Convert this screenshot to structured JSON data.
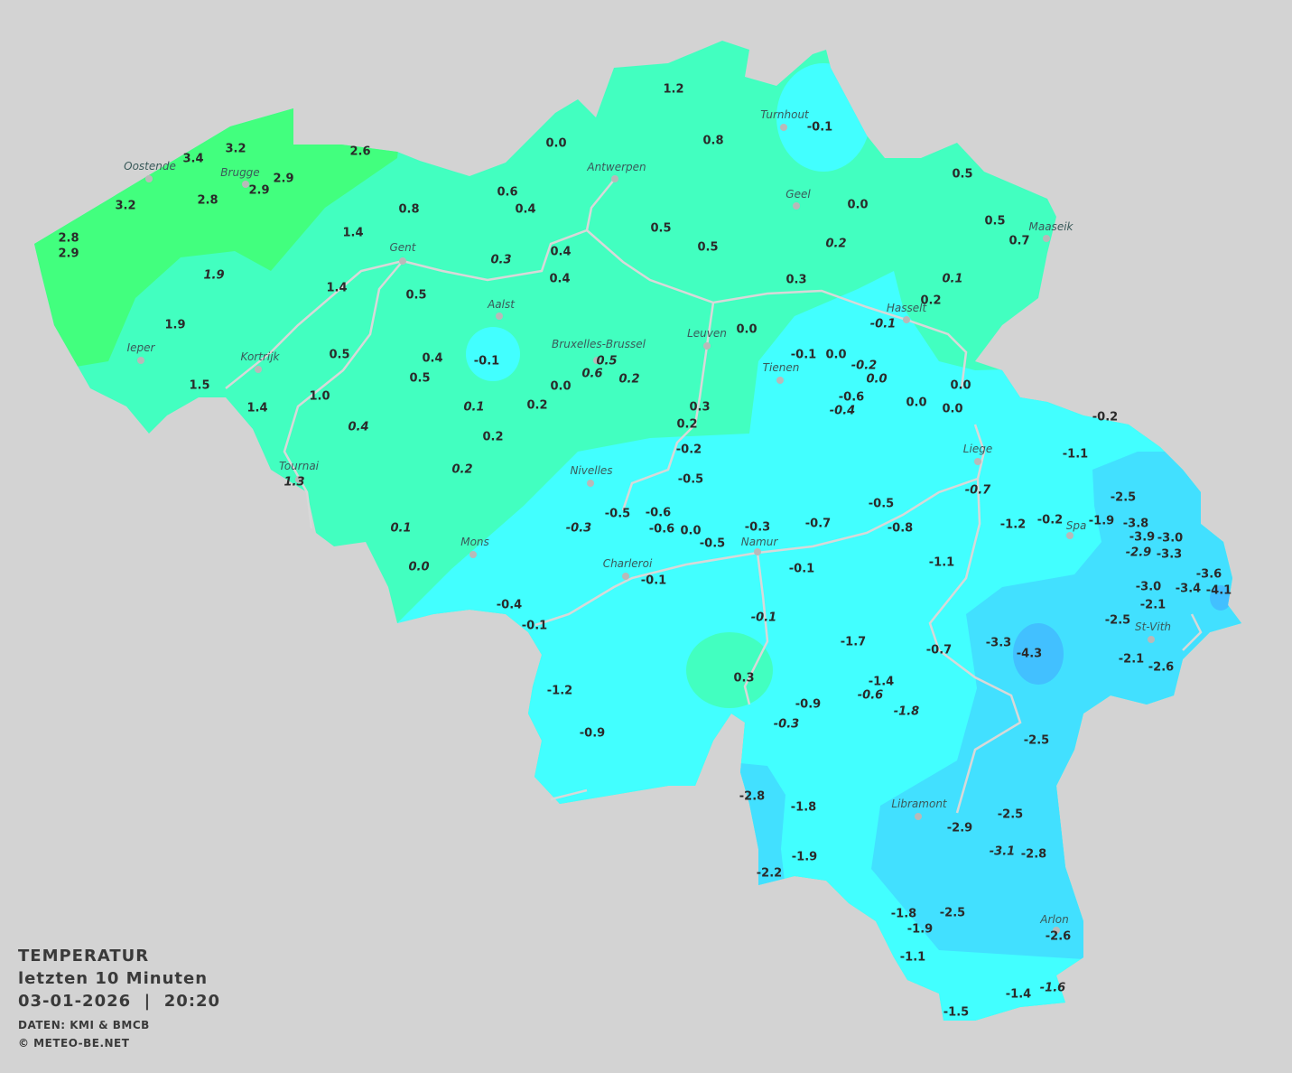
{
  "legend": {
    "title": "TEMPERATUR",
    "subtitle": "letzten 10 Minuten",
    "datetime": "03-01-2026  |  20:20",
    "source": "DATEN: KMI & BMCB",
    "copyright": "© METEO-BE.NET"
  },
  "colors": {
    "background": "#d3d3d3",
    "band_2_to_4": "#42ff7e",
    "band_0_to_2": "#42ffc0",
    "band_m2_to_0": "#42ffff",
    "band_m4_to_m2": "#42e0ff",
    "band_below_m4": "#42c0ff",
    "river": "#d8d8d8"
  },
  "cities": [
    "Turnhout",
    "Oostende",
    "Brugge",
    "Antwerpen",
    "Geel",
    "Maaseik",
    "Gent",
    "Aalst",
    "Hasselt",
    "Leuven",
    "Ieper",
    "Kortrijk",
    "Bruxelles-Brussel",
    "Tienen",
    "Liege",
    "Nivelles",
    "Tournai",
    "Spa",
    "Mons",
    "Namur",
    "Charleroi",
    "St-Vith",
    "Libramont",
    "Arlon"
  ],
  "stations": [
    {
      "v": "1.2"
    },
    {
      "v": "0.0"
    },
    {
      "v": "0.8"
    },
    {
      "v": "-0.1"
    },
    {
      "v": "3.2"
    },
    {
      "v": "3.4"
    },
    {
      "v": "2.6"
    },
    {
      "v": "2.9"
    },
    {
      "v": "2.9"
    },
    {
      "v": "3.2"
    },
    {
      "v": "2.8"
    },
    {
      "v": "0.6"
    },
    {
      "v": "0.4"
    },
    {
      "v": "0.8"
    },
    {
      "v": "0.5"
    },
    {
      "v": "0.0"
    },
    {
      "v": "0.5"
    },
    {
      "v": "0.7"
    },
    {
      "v": "0.5"
    },
    {
      "v": "0.5"
    },
    {
      "v": "0.2",
      "italic": true
    },
    {
      "v": "2.8"
    },
    {
      "v": "2.9"
    },
    {
      "v": "1.4"
    },
    {
      "v": "0.4"
    },
    {
      "v": "0.3",
      "italic": true
    },
    {
      "v": "0.4"
    },
    {
      "v": "1.9",
      "italic": true
    },
    {
      "v": "1.4"
    },
    {
      "v": "0.5"
    },
    {
      "v": "0.3"
    },
    {
      "v": "0.1",
      "italic": true
    },
    {
      "v": "0.2"
    },
    {
      "v": "-0.1",
      "italic": true
    },
    {
      "v": "1.9"
    },
    {
      "v": "0.0"
    },
    {
      "v": "-0.1"
    },
    {
      "v": "0.5"
    },
    {
      "v": "0.4"
    },
    {
      "v": "0.5",
      "italic": true
    },
    {
      "v": "0.6",
      "italic": true
    },
    {
      "v": "0.2",
      "italic": true
    },
    {
      "v": "-0.1"
    },
    {
      "v": "0.0"
    },
    {
      "v": "-0.2",
      "italic": true
    },
    {
      "v": "0.0",
      "italic": true
    },
    {
      "v": "0.5"
    },
    {
      "v": "0.0"
    },
    {
      "v": "1.5"
    },
    {
      "v": "1.0"
    },
    {
      "v": "1.4"
    },
    {
      "v": "0.1",
      "italic": true
    },
    {
      "v": "0.2"
    },
    {
      "v": "0.3"
    },
    {
      "v": "0.2"
    },
    {
      "v": "-0.6"
    },
    {
      "v": "-0.4",
      "italic": true
    },
    {
      "v": "0.0"
    },
    {
      "v": "0.0"
    },
    {
      "v": "0.0"
    },
    {
      "v": "-0.2"
    },
    {
      "v": "0.4",
      "italic": true
    },
    {
      "v": "0.2"
    },
    {
      "v": "-0.2"
    },
    {
      "v": "-1.1"
    },
    {
      "v": "0.2",
      "italic": true
    },
    {
      "v": "-0.5"
    },
    {
      "v": "1.3",
      "italic": true
    },
    {
      "v": "-0.7",
      "italic": true
    },
    {
      "v": "-2.5"
    },
    {
      "v": "-0.5"
    },
    {
      "v": "-0.6"
    },
    {
      "v": "-0.3",
      "italic": true
    },
    {
      "v": "-0.6"
    },
    {
      "v": "0.0"
    },
    {
      "v": "-0.5"
    },
    {
      "v": "-0.3"
    },
    {
      "v": "-0.7"
    },
    {
      "v": "-0.5"
    },
    {
      "v": "-0.8"
    },
    {
      "v": "-1.2"
    },
    {
      "v": "-0.2"
    },
    {
      "v": "-1.9"
    },
    {
      "v": "-3.8"
    },
    {
      "v": "-3.9"
    },
    {
      "v": "-3.0"
    },
    {
      "v": "-2.9",
      "italic": true
    },
    {
      "v": "-3.3"
    },
    {
      "v": "0.1",
      "italic": true
    },
    {
      "v": "0.0",
      "italic": true
    },
    {
      "v": "-0.1"
    },
    {
      "v": "-1.1"
    },
    {
      "v": "-3.0"
    },
    {
      "v": "-3.6"
    },
    {
      "v": "-3.4"
    },
    {
      "v": "-4.1"
    },
    {
      "v": "-2.1"
    },
    {
      "v": "-0.4"
    },
    {
      "v": "-0.1"
    },
    {
      "v": "-0.1"
    },
    {
      "v": "-0.1",
      "italic": true
    },
    {
      "v": "-2.5"
    },
    {
      "v": "-3.3"
    },
    {
      "v": "-4.3"
    },
    {
      "v": "-1.7"
    },
    {
      "v": "-0.7"
    },
    {
      "v": "-2.1"
    },
    {
      "v": "-2.6"
    },
    {
      "v": "0.3"
    },
    {
      "v": "-1.2"
    },
    {
      "v": "-1.4"
    },
    {
      "v": "-0.6",
      "italic": true
    },
    {
      "v": "-0.9"
    },
    {
      "v": "-1.8",
      "italic": true
    },
    {
      "v": "-0.3",
      "italic": true
    },
    {
      "v": "-0.9"
    },
    {
      "v": "-2.5"
    },
    {
      "v": "-2.8"
    },
    {
      "v": "-1.8"
    },
    {
      "v": "-2.5"
    },
    {
      "v": "-2.9"
    },
    {
      "v": "-3.1",
      "italic": true
    },
    {
      "v": "-2.8"
    },
    {
      "v": "-1.9"
    },
    {
      "v": "-2.2"
    },
    {
      "v": "-1.8"
    },
    {
      "v": "-2.5"
    },
    {
      "v": "-1.9"
    },
    {
      "v": "-2.6"
    },
    {
      "v": "-1.1"
    },
    {
      "v": "-1.4"
    },
    {
      "v": "-1.6",
      "italic": true
    },
    {
      "v": "-1.5"
    }
  ]
}
